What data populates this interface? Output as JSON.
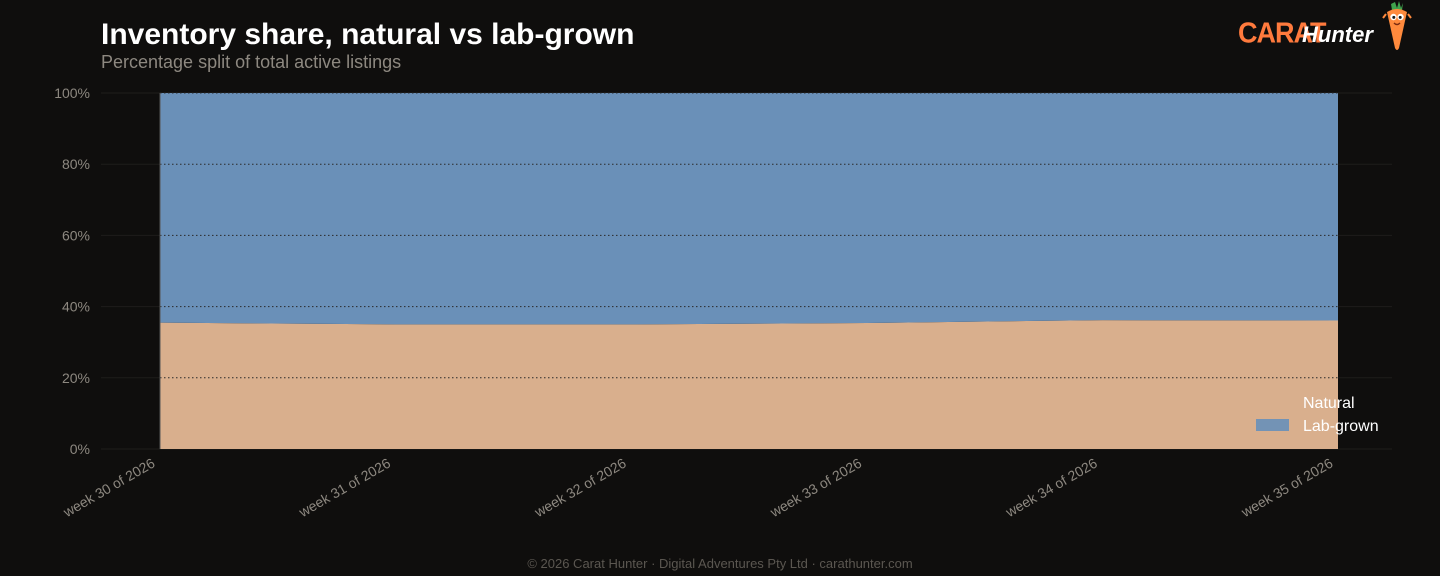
{
  "header": {
    "title": "Inventory share, natural vs lab-grown",
    "subtitle": "Percentage split of total active listings"
  },
  "brand": {
    "name_part1": "CARAT",
    "name_part2": "Hunter",
    "mascot_icon": "carrot-mascot-icon"
  },
  "footer": {
    "text": "© 2026 Carat Hunter · Digital Adventures Pty Ltd · carathunter.com"
  },
  "colors": {
    "background": "#0f0e0d",
    "natural": "#d9af8d",
    "lab_grown": "#6a90b8",
    "brand_orange": "#ff7a3d"
  },
  "chart_data": {
    "type": "area",
    "stacked": "percent",
    "categories": [
      "week 30 of 2026",
      "week 31 of 2026",
      "week 32 of 2026",
      "week 33 of 2026",
      "week 34 of 2026",
      "week 35 of 2026"
    ],
    "series": [
      {
        "name": "Natural",
        "values": [
          35.5,
          35.0,
          35.0,
          35.4,
          36.2,
          36.1
        ]
      },
      {
        "name": "Lab-grown",
        "values": [
          64.5,
          65.0,
          65.0,
          64.6,
          63.8,
          63.9
        ]
      }
    ],
    "yticks": [
      "0%",
      "20%",
      "40%",
      "60%",
      "80%",
      "100%"
    ],
    "ylim": [
      0,
      100
    ],
    "grid": true,
    "legend_position": "bottom-right"
  }
}
